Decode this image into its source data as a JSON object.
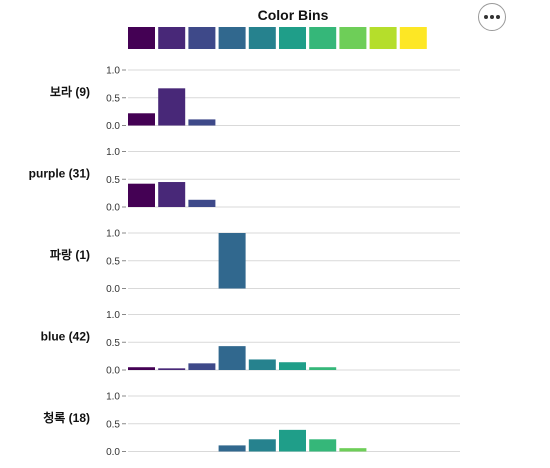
{
  "chart_data": {
    "type": "bar",
    "title": "Color Bins",
    "bins": [
      "#440154",
      "#482878",
      "#3e4989",
      "#31688e",
      "#26828e",
      "#1f9e89",
      "#35b779",
      "#6ece58",
      "#b5de2b",
      "#fde725"
    ],
    "ylim": [
      0,
      1
    ],
    "yticks": [
      "1.0",
      "0.5",
      "0.0"
    ],
    "grid": true,
    "series": [
      {
        "name": "보라 (9)",
        "values": [
          0.22,
          0.67,
          0.11,
          0,
          0,
          0,
          0,
          0,
          0,
          0
        ]
      },
      {
        "name": "purple (31)",
        "values": [
          0.42,
          0.45,
          0.13,
          0,
          0,
          0,
          0,
          0,
          0,
          0
        ]
      },
      {
        "name": "파랑 (1)",
        "values": [
          0,
          0,
          0,
          1.0,
          0,
          0,
          0,
          0,
          0,
          0
        ]
      },
      {
        "name": "blue (42)",
        "values": [
          0.05,
          0.03,
          0.12,
          0.43,
          0.19,
          0.14,
          0.05,
          0,
          0,
          0
        ]
      },
      {
        "name": "청록 (18)",
        "values": [
          0,
          0,
          0,
          0.11,
          0.22,
          0.39,
          0.22,
          0.06,
          0,
          0
        ]
      }
    ]
  },
  "menu": {
    "icon": "more-horizontal-icon"
  }
}
